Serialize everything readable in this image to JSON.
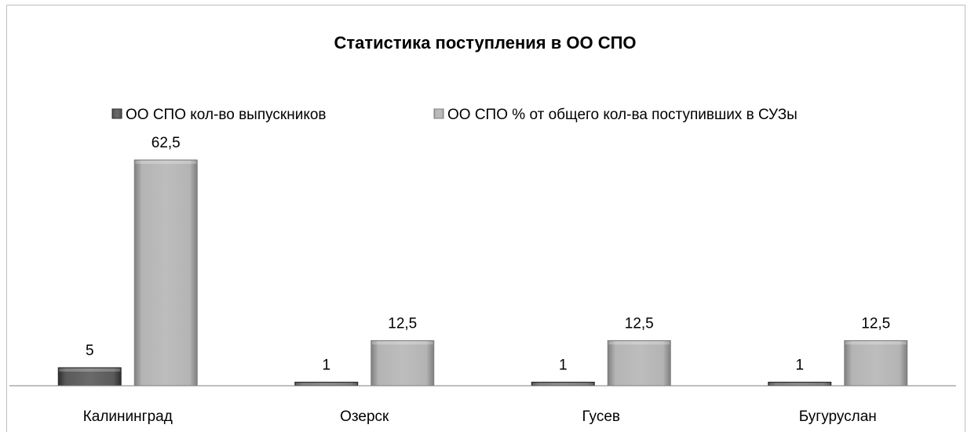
{
  "chart_data": {
    "type": "bar",
    "title": "Статистика поступления в ОО СПО",
    "categories": [
      "Калининград",
      "Озерск",
      "Гусев",
      "Бугуруслан"
    ],
    "series": [
      {
        "name": "ОО СПО кол-во выпускников",
        "values": [
          5,
          1,
          1,
          1
        ],
        "color": "#4a4a4a"
      },
      {
        "name": "ОО СПО % от общего кол-ва поступивших в СУЗы",
        "values": [
          62.5,
          12.5,
          12.5,
          12.5
        ],
        "color": "#a6a6a6"
      }
    ],
    "data_labels": [
      [
        "5",
        "1",
        "1",
        "1"
      ],
      [
        "62,5",
        "12,5",
        "12,5",
        "12,5"
      ]
    ],
    "ylim": [
      0,
      62.5
    ],
    "legend_position": "top",
    "grid": false
  }
}
